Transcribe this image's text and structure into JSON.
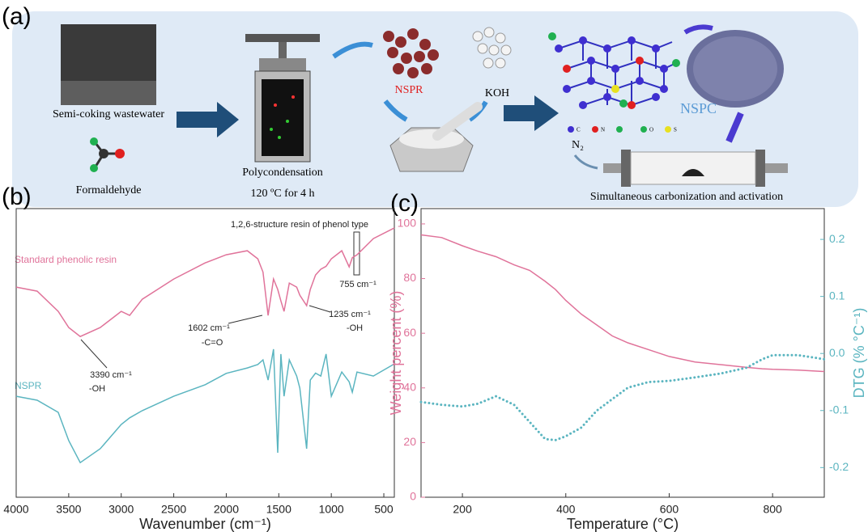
{
  "panel_labels": [
    "(a)",
    "(b)",
    "(c)"
  ],
  "diagram": {
    "feed": "Semi-coking wastewater",
    "reagent": "Formaldehyde",
    "process": "Polycondensation",
    "condition": "120 ºC for 4 h",
    "resin": "NSPR",
    "activator": "KOH",
    "product": "NSPC",
    "gas": "N₂",
    "step": "Simultaneous carbonization and activation",
    "atoms": [
      "C",
      "N",
      "O",
      "S"
    ]
  },
  "chart_data": [
    {
      "type": "line",
      "xlabel": "Wavenumber (cm⁻¹)",
      "xlim": [
        4000,
        400
      ],
      "xticks": [
        4000,
        3500,
        3000,
        2500,
        2000,
        1500,
        1000,
        500
      ],
      "ylim": [
        0,
        100
      ],
      "x": [
        4000,
        3800,
        3600,
        3500,
        3390,
        3200,
        3000,
        2920,
        2800,
        2500,
        2200,
        2000,
        1800,
        1700,
        1650,
        1602,
        1550,
        1510,
        1480,
        1450,
        1400,
        1330,
        1300,
        1235,
        1200,
        1150,
        1100,
        1050,
        1000,
        900,
        830,
        800,
        755,
        600,
        400
      ],
      "series": [
        {
          "name": "Standard phenolic resin",
          "color": "#e0739a",
          "values": [
            72.8,
            71.4,
            64.4,
            58.8,
            55.7,
            58.8,
            64.4,
            63,
            68.6,
            75.6,
            81.2,
            84,
            85.4,
            82.6,
            78,
            63,
            75.6,
            72,
            68,
            64.4,
            74.2,
            72.8,
            70,
            66.4,
            72,
            77,
            79,
            80,
            82.6,
            85.4,
            79.8,
            83,
            84,
            89.6,
            93.3
          ]
        },
        {
          "name": "NSPR",
          "color": "#5bb5c0",
          "values": [
            35,
            33.6,
            29.4,
            19.6,
            12,
            16.8,
            25.2,
            27.5,
            30,
            35,
            39,
            42.9,
            44.8,
            46,
            47.6,
            40.6,
            51.3,
            15.4,
            49.6,
            35,
            47.6,
            42,
            37.8,
            16.8,
            40.6,
            43,
            42,
            49.6,
            35,
            43.4,
            40,
            36.4,
            43.4,
            42,
            46.2
          ]
        }
      ],
      "annotations": [
        "1,2,6-structure resin of phenol type",
        "755 cm⁻¹",
        "1602 cm⁻¹",
        "-C=O",
        "1235 cm⁻¹",
        "-OH",
        "3390 cm⁻¹",
        "-OH"
      ]
    },
    {
      "type": "line",
      "xlabel": "Temperature (°C)",
      "ylabel": "Weight percent (%)",
      "y2label": "DTG (% °C⁻¹)",
      "xlim": [
        120,
        900
      ],
      "xticks": [
        200,
        400,
        600,
        800
      ],
      "ylim": [
        0,
        105.6
      ],
      "yticks": [
        0,
        20,
        40,
        60,
        80,
        100
      ],
      "y2lim": [
        -0.252,
        0.254
      ],
      "y2ticks": [
        -0.2,
        -0.1,
        {
          "value": 0,
          "label": "0.0"
        },
        0.1,
        0.2
      ],
      "x": [
        120,
        160,
        200,
        230,
        265,
        300,
        330,
        360,
        380,
        400,
        430,
        460,
        490,
        520,
        560,
        600,
        650,
        700,
        750,
        780,
        800,
        850,
        900
      ],
      "series": [
        {
          "name": "Weight percent",
          "color": "#e0739a",
          "axis": "y",
          "values": [
            96,
            95,
            92,
            90,
            88,
            85,
            83,
            79,
            76,
            72,
            67,
            63,
            59,
            56.5,
            54,
            51.5,
            49.5,
            48.5,
            47.5,
            47,
            46.8,
            46.5,
            46
          ]
        },
        {
          "name": "DTG",
          "color": "#5bb5c0",
          "axis": "y2",
          "dash": "dotted",
          "values": [
            -0.085,
            -0.09,
            -0.093,
            -0.088,
            -0.075,
            -0.09,
            -0.12,
            -0.15,
            -0.152,
            -0.145,
            -0.13,
            -0.1,
            -0.08,
            -0.06,
            -0.05,
            -0.048,
            -0.042,
            -0.035,
            -0.025,
            -0.01,
            -0.003,
            -0.003,
            -0.01
          ]
        }
      ]
    }
  ]
}
